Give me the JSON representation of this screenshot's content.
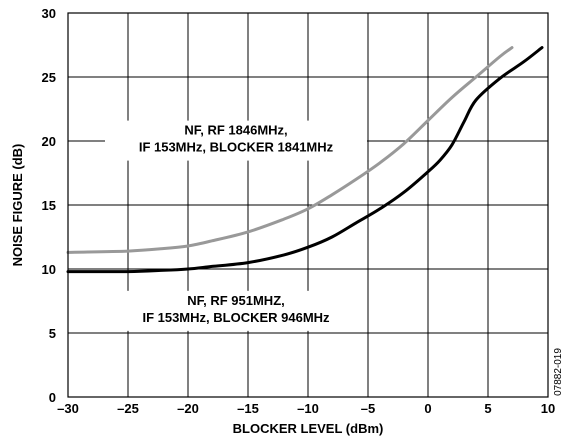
{
  "chart_data": {
    "type": "line",
    "xlabel": "BLOCKER LEVEL (dBm)",
    "ylabel": "NOISE FIGURE (dB)",
    "xlim": [
      -30,
      10
    ],
    "ylim": [
      0,
      30
    ],
    "grid": true,
    "x_ticks": [
      "–30",
      "–25",
      "–20",
      "–15",
      "–10",
      "–5",
      "0",
      "5",
      "10"
    ],
    "y_ticks": [
      "0",
      "5",
      "10",
      "15",
      "20",
      "25",
      "30"
    ],
    "series": [
      {
        "name": "NF, RF 1846MHz, IF 153MHz, BLOCKER 1841MHz",
        "color": "#999999",
        "x": [
          -30,
          -25,
          -22,
          -20,
          -18,
          -15,
          -12,
          -10,
          -8,
          -6,
          -4,
          -2,
          0,
          2,
          4,
          6,
          7
        ],
        "y": [
          11.3,
          11.4,
          11.6,
          11.8,
          12.2,
          12.9,
          13.9,
          14.7,
          15.8,
          17.0,
          18.3,
          19.8,
          21.6,
          23.4,
          25.0,
          26.6,
          27.3
        ]
      },
      {
        "name": "NF, RF 951MHZ, IF 153MHz, BLOCKER 946MHz",
        "color": "#000000",
        "x": [
          -30,
          -25,
          -22,
          -20,
          -18,
          -15,
          -12,
          -10,
          -8,
          -6,
          -4,
          -2,
          0,
          1,
          2,
          3,
          4,
          6,
          8,
          9.5
        ],
        "y": [
          9.8,
          9.8,
          9.9,
          10.0,
          10.2,
          10.5,
          11.1,
          11.7,
          12.5,
          13.6,
          14.7,
          16.0,
          17.6,
          18.5,
          19.7,
          21.5,
          23.2,
          24.9,
          26.2,
          27.3
        ]
      }
    ],
    "annotations": [
      {
        "lines": [
          "NF, RF 1846MHz,",
          "IF 153MHz, BLOCKER 1841MHz"
        ],
        "x": -16,
        "y": 20.5
      },
      {
        "lines": [
          "NF, RF 951MHZ,",
          "IF 153MHz, BLOCKER 946MHz"
        ],
        "x": -16,
        "y": 7.2
      }
    ],
    "figure_id": "07882-019"
  }
}
